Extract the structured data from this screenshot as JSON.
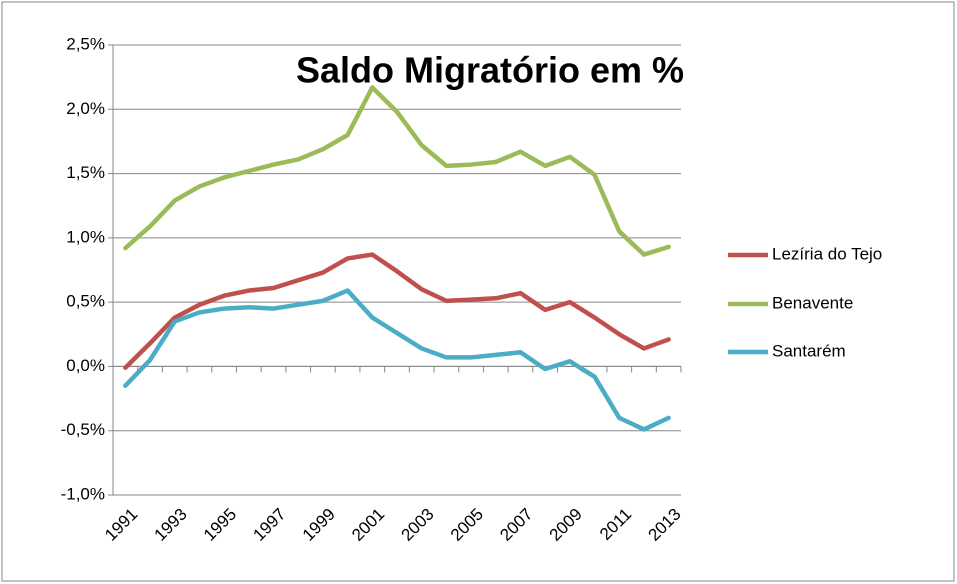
{
  "chart_data": {
    "type": "line",
    "title": "Saldo Migratório em %",
    "categories": [
      "1991",
      null,
      "1993",
      null,
      "1995",
      null,
      "1997",
      null,
      "1999",
      null,
      "2001",
      null,
      "2003",
      null,
      "2005",
      null,
      "2007",
      null,
      "2009",
      null,
      "2011",
      null,
      "2013"
    ],
    "series": [
      {
        "name": "Lezíria do Tejo",
        "color": "#c0504d",
        "values": [
          -0.01,
          0.18,
          0.38,
          0.48,
          0.55,
          0.59,
          0.61,
          0.67,
          0.73,
          0.84,
          0.87,
          0.74,
          0.6,
          0.51,
          0.52,
          0.53,
          0.57,
          0.44,
          0.5,
          0.38,
          0.25,
          0.14,
          0.21
        ]
      },
      {
        "name": "Benavente",
        "color": "#9bbb59",
        "values": [
          0.92,
          1.09,
          1.29,
          1.4,
          1.47,
          1.52,
          1.57,
          1.61,
          1.69,
          1.8,
          2.17,
          1.98,
          1.72,
          1.56,
          1.57,
          1.59,
          1.67,
          1.56,
          1.63,
          1.49,
          1.05,
          0.87,
          0.93
        ]
      },
      {
        "name": "Santarém",
        "color": "#4bacc6",
        "values": [
          -0.15,
          0.05,
          0.35,
          0.42,
          0.45,
          0.46,
          0.45,
          0.48,
          0.51,
          0.59,
          0.38,
          0.26,
          0.14,
          0.07,
          0.07,
          0.09,
          0.11,
          -0.02,
          0.04,
          -0.08,
          -0.4,
          -0.49,
          -0.4
        ]
      }
    ],
    "ylim": [
      -1,
      2.5
    ],
    "yticks": [
      {
        "value": -1,
        "label": "-1,0%"
      },
      {
        "value": -0.5,
        "label": "-0,5%"
      },
      {
        "value": 0,
        "label": "0,0%"
      },
      {
        "value": 0.5,
        "label": "0,5%"
      },
      {
        "value": 1,
        "label": "1,0%"
      },
      {
        "value": 1.5,
        "label": "1,5%"
      },
      {
        "value": 2,
        "label": "2,0%"
      },
      {
        "value": 2.5,
        "label": "2,5%"
      }
    ],
    "grid": true,
    "legend": "right"
  }
}
